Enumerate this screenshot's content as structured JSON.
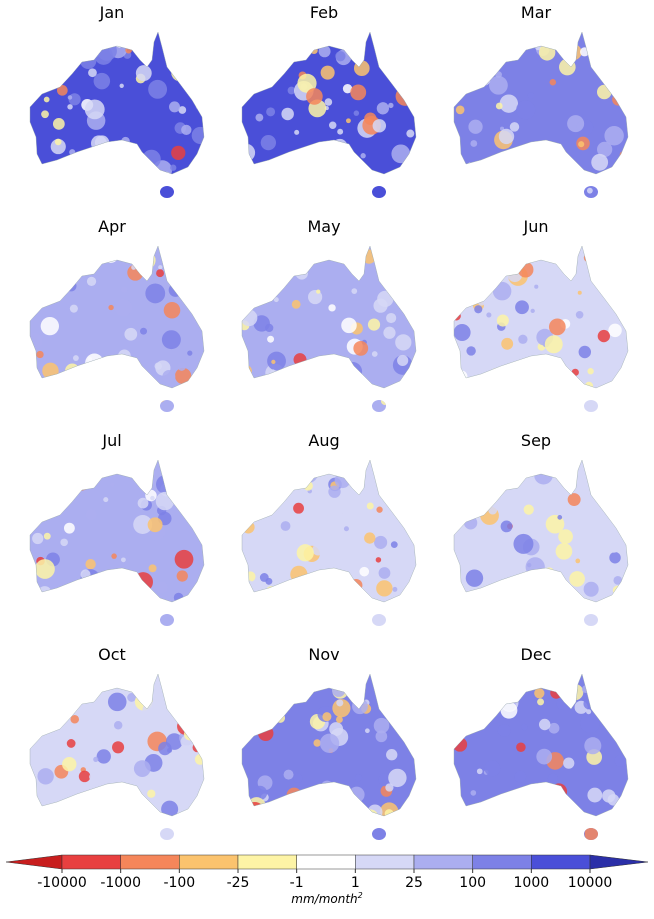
{
  "panels": [
    "Jan",
    "Feb",
    "Mar",
    "Apr",
    "May",
    "Jun",
    "Jul",
    "Aug",
    "Sep",
    "Oct",
    "Nov",
    "Dec"
  ],
  "colorbar": {
    "ticks": [
      -10000,
      -1000,
      -100,
      -25,
      -1,
      1,
      25,
      100,
      1000,
      10000
    ],
    "colors": [
      "#c81e1e",
      "#e84040",
      "#f5865a",
      "#fbc36e",
      "#fdf4a6",
      "#ffffff",
      "#d6d8f6",
      "#abaef0",
      "#7d81e6",
      "#4a4fd8",
      "#2b2fa8"
    ],
    "unit": {
      "base": "mm/month",
      "exponent": "2"
    }
  }
}
